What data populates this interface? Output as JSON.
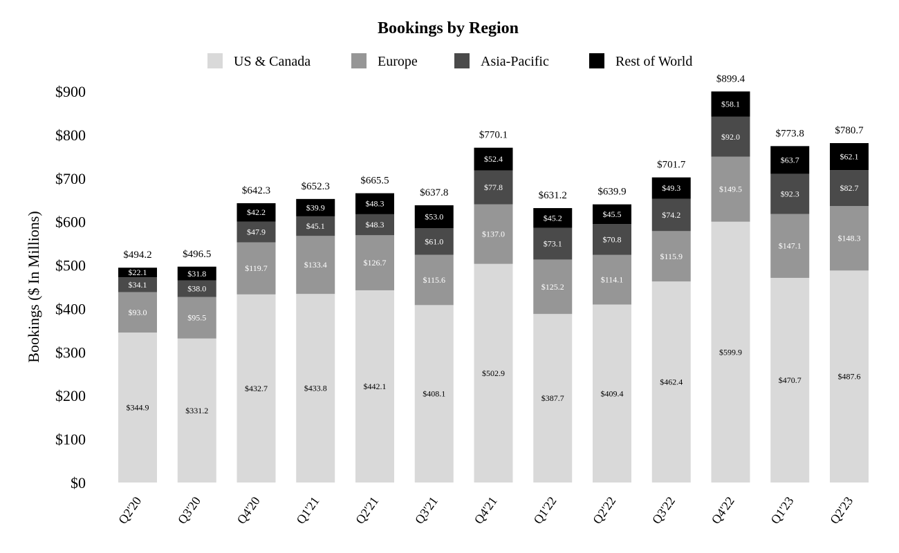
{
  "chart_data": {
    "type": "bar",
    "stacked": true,
    "title": "Bookings by Region",
    "xlabel": "",
    "ylabel": "Bookings ($ In Millions)",
    "ylim": [
      0,
      900
    ],
    "yticks": [
      "$0",
      "$100",
      "$200",
      "$300",
      "$400",
      "$500",
      "$600",
      "$700",
      "$800",
      "$900"
    ],
    "grid": false,
    "legend_position": "top-center",
    "categories": [
      "Q2'20",
      "Q3'20",
      "Q4'20",
      "Q1'21",
      "Q2'21",
      "Q3'21",
      "Q4'21",
      "Q1'22",
      "Q2'22",
      "Q3'22",
      "Q4'22",
      "Q1'23",
      "Q2'23"
    ],
    "series": [
      {
        "name": "US & Canada",
        "color": "#d9d9d9",
        "label_color": "#000000",
        "values": [
          344.9,
          331.2,
          432.7,
          433.8,
          442.1,
          408.1,
          502.9,
          387.7,
          409.4,
          462.4,
          599.9,
          470.7,
          487.6
        ],
        "labels": [
          "$344.9",
          "$331.2",
          "$432.7",
          "$433.8",
          "$442.1",
          "$408.1",
          "$502.9",
          "$387.7",
          "$409.4",
          "$462.4",
          "$599.9",
          "$470.7",
          "$487.6"
        ]
      },
      {
        "name": "Europe",
        "color": "#969696",
        "label_color": "#ffffff",
        "values": [
          93.0,
          95.5,
          119.7,
          133.4,
          126.7,
          115.6,
          137.0,
          125.2,
          114.1,
          115.9,
          149.5,
          147.1,
          148.3
        ],
        "labels": [
          "$93.0",
          "$95.5",
          "$119.7",
          "$133.4",
          "$126.7",
          "$115.6",
          "$137.0",
          "$125.2",
          "$114.1",
          "$115.9",
          "$149.5",
          "$147.1",
          "$148.3"
        ]
      },
      {
        "name": "Asia-Pacific",
        "color": "#4a4a4a",
        "label_color": "#ffffff",
        "values": [
          34.1,
          38.0,
          47.9,
          45.1,
          48.3,
          61.0,
          77.8,
          73.1,
          70.8,
          74.2,
          92.0,
          92.3,
          82.7
        ],
        "labels": [
          "$34.1",
          "$38.0",
          "$47.9",
          "$45.1",
          "$48.3",
          "$61.0",
          "$77.8",
          "$73.1",
          "$70.8",
          "$74.2",
          "$92.0",
          "$92.3",
          "$82.7"
        ]
      },
      {
        "name": "Rest of World",
        "color": "#000000",
        "label_color": "#ffffff",
        "values": [
          22.1,
          31.8,
          42.2,
          39.9,
          48.3,
          53.0,
          52.4,
          45.2,
          45.5,
          49.3,
          58.1,
          63.7,
          62.1
        ],
        "labels": [
          "$22.1",
          "$31.8",
          "$42.2",
          "$39.9",
          "$48.3",
          "$53.0",
          "$52.4",
          "$45.2",
          "$45.5",
          "$49.3",
          "$58.1",
          "$63.7",
          "$62.1"
        ]
      }
    ],
    "totals": [
      494.2,
      496.5,
      642.3,
      652.3,
      665.5,
      637.8,
      770.1,
      631.2,
      639.9,
      701.7,
      899.4,
      773.8,
      780.7
    ],
    "total_labels": [
      "$494.2",
      "$496.5",
      "$642.3",
      "$652.3",
      "$665.5",
      "$637.8",
      "$770.1",
      "$631.2",
      "$639.9",
      "$701.7",
      "$899.4",
      "$773.8",
      "$780.7"
    ]
  }
}
